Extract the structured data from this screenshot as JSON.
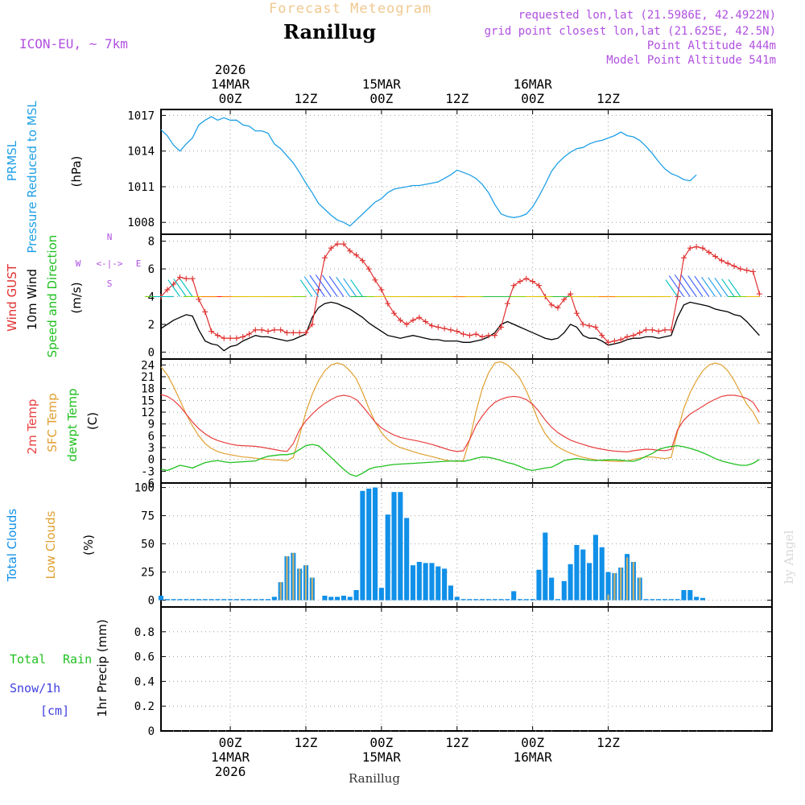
{
  "header": {
    "supertitle": "Forecast Meteogram",
    "location": "Ranillug",
    "model": "ICON-EU, ~ 7km",
    "requested": "requested lon,lat (21.5986E, 42.4922N)",
    "grid_point": "grid point closest lon,lat (21.625E, 42.5N)",
    "point_altitude": "Point Altitude 444m",
    "model_altitude": "Model Point Altitude 541m",
    "footer_location": "Ranillug",
    "watermark": "by Angel"
  },
  "time_axis": {
    "top_labels": [
      {
        "line1": "2026",
        "line2": "14MAR",
        "line3": "00Z"
      },
      {
        "line1": "",
        "line2": "",
        "line3": "12Z"
      },
      {
        "line1": "",
        "line2": "15MAR",
        "line3": "00Z"
      },
      {
        "line1": "",
        "line2": "",
        "line3": "12Z"
      },
      {
        "line1": "",
        "line2": "16MAR",
        "line3": "00Z"
      },
      {
        "line1": "",
        "line2": "",
        "line3": "12Z"
      }
    ],
    "bottom_labels": [
      {
        "line1": "00Z",
        "line2": "14MAR",
        "line3": "2026"
      },
      {
        "line1": "12Z",
        "line2": "",
        "line3": ""
      },
      {
        "line1": "00Z",
        "line2": "15MAR",
        "line3": ""
      },
      {
        "line1": "12Z",
        "line2": "",
        "line3": ""
      },
      {
        "line1": "00Z",
        "line2": "16MAR",
        "line3": ""
      },
      {
        "line1": "12Z",
        "line2": "",
        "line3": ""
      }
    ],
    "tick_hours": [
      0,
      12,
      24,
      36,
      48,
      60
    ]
  },
  "panel_labels": {
    "pressure": [
      "PRMSL",
      "Pressure Reduced to MSL",
      "(hPa)"
    ],
    "wind": [
      "Wind GUST",
      "10m Wind",
      "Speed and Direction",
      "(m/s)"
    ],
    "compass": [
      "N",
      "S",
      "W",
      "E",
      "<-|->"
    ],
    "temp": [
      "2m Temp",
      "SFC Temp",
      "dewpt Temp",
      "(C)"
    ],
    "cloud": [
      "Total Clouds",
      "Low Clouds",
      "(%)"
    ],
    "precip": [
      "Total",
      "Rain",
      "Snow/1h",
      "[cm]",
      "1hr Precip (mm)"
    ]
  },
  "colors": {
    "pressure": "#1ea0e6",
    "gust": "#e03030",
    "wind": "#000000",
    "t2m": "#e84040",
    "tsfc": "#e0a030",
    "dewpt": "#20c020",
    "total_clouds": "#1090e8",
    "low_clouds": "#c8b070",
    "title_purple": "#b050e0",
    "supertitle": "#f0c890"
  },
  "chart_data": [
    {
      "type": "line",
      "title": "PRMSL Pressure Reduced to MSL",
      "ylabel": "(hPa)",
      "ylim": [
        1007,
        1017.5
      ],
      "yticks": [
        1008,
        1011,
        1014,
        1017
      ],
      "x_start_hour": -11,
      "x_step_hours": 1,
      "series": [
        {
          "name": "PRMSL",
          "values": [
            1015.8,
            1015.3,
            1014.5,
            1014.0,
            1014.6,
            1015.1,
            1016.2,
            1016.6,
            1016.9,
            1016.6,
            1016.8,
            1016.6,
            1016.6,
            1016.2,
            1016.1,
            1015.7,
            1015.7,
            1015.5,
            1014.6,
            1014.2,
            1013.6,
            1013.0,
            1012.2,
            1011.3,
            1010.5,
            1009.6,
            1009.1,
            1008.6,
            1008.2,
            1008.0,
            1007.7,
            1008.2,
            1008.7,
            1009.2,
            1009.7,
            1010.0,
            1010.5,
            1010.8,
            1010.9,
            1011.0,
            1011.1,
            1011.1,
            1011.2,
            1011.3,
            1011.4,
            1011.7,
            1012.0,
            1012.4,
            1012.2,
            1012.0,
            1011.7,
            1011.2,
            1010.5,
            1009.5,
            1008.7,
            1008.5,
            1008.4,
            1008.5,
            1008.7,
            1009.3,
            1010.2,
            1011.2,
            1012.3,
            1013.0,
            1013.5,
            1013.9,
            1014.2,
            1014.3,
            1014.6,
            1014.8,
            1014.9,
            1015.1,
            1015.3,
            1015.6,
            1015.3,
            1015.2,
            1014.9,
            1014.4,
            1013.8,
            1013.1,
            1012.5,
            1012.1,
            1011.9,
            1011.6,
            1011.5,
            1012.0
          ]
        }
      ]
    },
    {
      "type": "line",
      "title": "Wind GUST / 10m Wind Speed and Direction",
      "ylabel": "(m/s)",
      "ylim": [
        -0.5,
        8.5
      ],
      "yticks": [
        0,
        2,
        4,
        6,
        8
      ],
      "x_start_hour": -11,
      "x_step_hours": 1,
      "series": [
        {
          "name": "Wind GUST",
          "values": [
            4.0,
            4.5,
            4.9,
            5.4,
            5.3,
            5.3,
            3.8,
            2.9,
            1.5,
            1.2,
            1.0,
            1.0,
            1.0,
            1.1,
            1.3,
            1.6,
            1.6,
            1.5,
            1.6,
            1.6,
            1.4,
            1.4,
            1.4,
            1.4,
            2.0,
            4.5,
            6.8,
            7.5,
            7.8,
            7.8,
            7.3,
            7.0,
            6.6,
            6.0,
            5.2,
            4.5,
            3.5,
            2.8,
            2.3,
            2.0,
            2.3,
            2.5,
            2.2,
            1.9,
            1.8,
            1.7,
            1.6,
            1.5,
            1.3,
            1.2,
            1.3,
            1.1,
            1.2,
            1.2,
            1.8,
            3.5,
            4.8,
            5.1,
            5.3,
            5.1,
            4.8,
            4.0,
            3.4,
            3.2,
            3.8,
            4.2,
            2.8,
            2.0,
            1.9,
            1.8,
            1.2,
            0.7,
            0.8,
            0.9,
            1.1,
            1.2,
            1.4,
            1.6,
            1.6,
            1.5,
            1.6,
            1.6,
            4.0,
            6.8,
            7.5,
            7.6,
            7.5,
            7.2,
            6.9,
            6.6,
            6.4,
            6.2,
            6.0,
            5.9,
            5.8,
            4.2
          ]
        },
        {
          "name": "10m Wind",
          "values": [
            1.7,
            2.0,
            2.3,
            2.5,
            2.7,
            2.6,
            1.6,
            0.8,
            0.6,
            0.5,
            0.1,
            0.4,
            0.5,
            0.8,
            1.0,
            1.2,
            1.1,
            1.1,
            1.0,
            0.9,
            0.8,
            0.9,
            1.1,
            1.3,
            2.5,
            3.2,
            3.5,
            3.6,
            3.5,
            3.3,
            3.1,
            2.8,
            2.5,
            2.1,
            1.8,
            1.5,
            1.2,
            1.1,
            1.0,
            1.1,
            1.2,
            1.1,
            1.0,
            0.9,
            0.9,
            0.8,
            0.8,
            0.8,
            0.7,
            0.7,
            0.8,
            0.9,
            1.1,
            1.4,
            2.0,
            2.2,
            2.0,
            1.8,
            1.6,
            1.4,
            1.2,
            1.0,
            0.9,
            1.0,
            1.4,
            2.0,
            1.8,
            1.2,
            1.0,
            1.0,
            0.8,
            0.5,
            0.6,
            0.7,
            0.9,
            1.0,
            1.0,
            1.1,
            1.1,
            1.0,
            1.1,
            1.2,
            2.5,
            3.4,
            3.6,
            3.5,
            3.4,
            3.3,
            3.1,
            3.0,
            2.9,
            2.7,
            2.6,
            2.2,
            1.7,
            1.2
          ]
        }
      ]
    },
    {
      "type": "line",
      "title": "2m Temp / SFC Temp / dewpt Temp",
      "ylabel": "(C)",
      "ylim": [
        -6,
        25.5
      ],
      "yticks": [
        -6,
        -3,
        0,
        3,
        6,
        9,
        12,
        15,
        18,
        21,
        24
      ],
      "x_start_hour": -11,
      "x_step_hours": 1,
      "series": [
        {
          "name": "2m Temp",
          "values": [
            16.5,
            16.0,
            15.0,
            13.5,
            11.5,
            9.5,
            7.8,
            6.5,
            5.5,
            4.8,
            4.3,
            3.9,
            3.6,
            3.5,
            3.4,
            3.3,
            3.1,
            2.8,
            2.5,
            2.2,
            2.0,
            4.0,
            7.5,
            9.8,
            11.5,
            13.0,
            14.2,
            15.2,
            16.0,
            16.3,
            16.0,
            15.2,
            13.5,
            11.5,
            9.5,
            8.0,
            7.0,
            6.2,
            5.6,
            5.2,
            4.9,
            4.6,
            4.2,
            3.8,
            3.3,
            2.8,
            2.3,
            2.0,
            2.2,
            5.0,
            8.5,
            11.0,
            13.0,
            14.5,
            15.3,
            15.8,
            16.0,
            15.8,
            15.2,
            14.0,
            12.2,
            10.0,
            8.2,
            6.8,
            5.8,
            4.9,
            4.3,
            3.8,
            3.3,
            2.9,
            2.6,
            2.3,
            2.1,
            2.0,
            1.9,
            2.2,
            2.4,
            2.6,
            2.5,
            2.3,
            2.2,
            2.5,
            7.5,
            10.0,
            11.5,
            12.5,
            13.5,
            14.5,
            15.3,
            16.0,
            16.3,
            16.3,
            16.0,
            15.5,
            14.5,
            12.0
          ]
        },
        {
          "name": "SFC Temp",
          "values": [
            23.5,
            21.5,
            18.5,
            15.0,
            11.5,
            8.5,
            6.0,
            4.0,
            2.8,
            2.0,
            1.5,
            1.2,
            0.9,
            0.6,
            0.5,
            0.3,
            0.1,
            0.0,
            -0.1,
            -0.2,
            -0.4,
            0.5,
            6.0,
            12.0,
            16.5,
            20.0,
            22.5,
            24.0,
            24.5,
            24.0,
            22.5,
            20.5,
            17.0,
            13.0,
            9.5,
            6.8,
            5.0,
            3.8,
            3.0,
            2.5,
            2.0,
            1.5,
            1.1,
            0.7,
            0.3,
            -0.1,
            -0.4,
            -0.5,
            -0.3,
            5.0,
            12.0,
            18.0,
            22.0,
            24.5,
            24.8,
            24.0,
            22.5,
            20.5,
            17.5,
            13.5,
            9.5,
            6.5,
            4.5,
            3.2,
            2.3,
            1.6,
            1.0,
            0.5,
            0.2,
            -0.1,
            -0.3,
            -0.4,
            -0.5,
            -0.5,
            -0.4,
            0.0,
            0.3,
            0.6,
            0.6,
            0.4,
            0.2,
            0.5,
            7.0,
            13.0,
            17.0,
            20.0,
            22.5,
            24.0,
            24.5,
            24.0,
            22.5,
            20.0,
            17.0,
            14.0,
            12.0,
            9.0
          ]
        },
        {
          "name": "dewpt Temp",
          "values": [
            -2.5,
            -2.8,
            -2.2,
            -1.5,
            -1.8,
            -2.2,
            -1.5,
            -0.8,
            -0.5,
            -0.3,
            -0.6,
            -0.8,
            -0.7,
            -0.6,
            -0.5,
            -0.4,
            0.3,
            0.8,
            1.0,
            1.2,
            1.2,
            1.5,
            2.5,
            3.5,
            3.8,
            3.5,
            2.0,
            0.5,
            -1.0,
            -2.5,
            -3.8,
            -4.3,
            -3.5,
            -2.5,
            -2.0,
            -1.8,
            -1.5,
            -1.3,
            -1.2,
            -1.1,
            -1.0,
            -0.9,
            -0.8,
            -0.7,
            -0.6,
            -0.5,
            -0.4,
            -0.4,
            -0.5,
            -0.2,
            0.3,
            0.6,
            0.5,
            0.2,
            -0.3,
            -0.8,
            -1.2,
            -1.8,
            -2.5,
            -2.8,
            -2.5,
            -2.2,
            -2.0,
            -1.2,
            -0.3,
            0.0,
            0.2,
            0.0,
            -0.2,
            -0.3,
            -0.2,
            -0.1,
            -0.1,
            -0.2,
            -0.4,
            -0.5,
            0.0,
            0.8,
            1.5,
            2.5,
            3.0,
            3.3,
            3.5,
            3.2,
            2.8,
            2.3,
            1.7,
            1.0,
            0.2,
            -0.4,
            -0.8,
            -1.2,
            -1.5,
            -1.5,
            -1.0,
            0.0
          ]
        }
      ]
    },
    {
      "type": "bar",
      "title": "Total Clouds / Low Clouds",
      "ylabel": "(%)",
      "ylim": [
        -6,
        104
      ],
      "yticks": [
        0,
        25,
        50,
        75,
        100
      ],
      "x_start_hour": -11,
      "x_step_hours": 1,
      "series": [
        {
          "name": "Total Clouds",
          "values": [
            4,
            1,
            1,
            1,
            1,
            1,
            1,
            1,
            1,
            1,
            1,
            1,
            1,
            1,
            1,
            1,
            1,
            1,
            3,
            16,
            39,
            42,
            28,
            31,
            20,
            0,
            4,
            3,
            3,
            4,
            3,
            9,
            97,
            99,
            100,
            11,
            76,
            96,
            96,
            73,
            31,
            34,
            33,
            33,
            30,
            28,
            13,
            3,
            1,
            1,
            1,
            1,
            1,
            1,
            1,
            1,
            8,
            1,
            1,
            1,
            27,
            60,
            20,
            1,
            17,
            32,
            49,
            45,
            33,
            58,
            47,
            25,
            24,
            29,
            41,
            34,
            20,
            1,
            1,
            1,
            1,
            1,
            1,
            9,
            9,
            3,
            2
          ]
        },
        {
          "name": "Low Clouds",
          "values": [
            0,
            0,
            0,
            0,
            0,
            0,
            0,
            0,
            0,
            0,
            0,
            0,
            0,
            0,
            0,
            0,
            0,
            0,
            0,
            16,
            39,
            42,
            28,
            31,
            20,
            0,
            0,
            0,
            0,
            0,
            0,
            0,
            0,
            0,
            0,
            0,
            0,
            0,
            0,
            0,
            0,
            0,
            0,
            0,
            0,
            0,
            0,
            0,
            0,
            0,
            0,
            0,
            0,
            0,
            0,
            0,
            0,
            0,
            0,
            0,
            0,
            0,
            0,
            0,
            0,
            0,
            0,
            0,
            0,
            0,
            0,
            5,
            24,
            29,
            38,
            34,
            20,
            0,
            0,
            0,
            0,
            0,
            0,
            0,
            0,
            0,
            0
          ]
        }
      ]
    },
    {
      "type": "bar",
      "title": "1hr Precip",
      "ylabel": "1hr Precip (mm)",
      "ylim": [
        0,
        1.0
      ],
      "yticks": [
        0,
        0.2,
        0.4,
        0.6,
        0.8
      ],
      "series": [
        {
          "name": "Total Rain",
          "values": [
            0
          ]
        },
        {
          "name": "Snow/1h",
          "values": [
            0
          ]
        }
      ]
    }
  ]
}
